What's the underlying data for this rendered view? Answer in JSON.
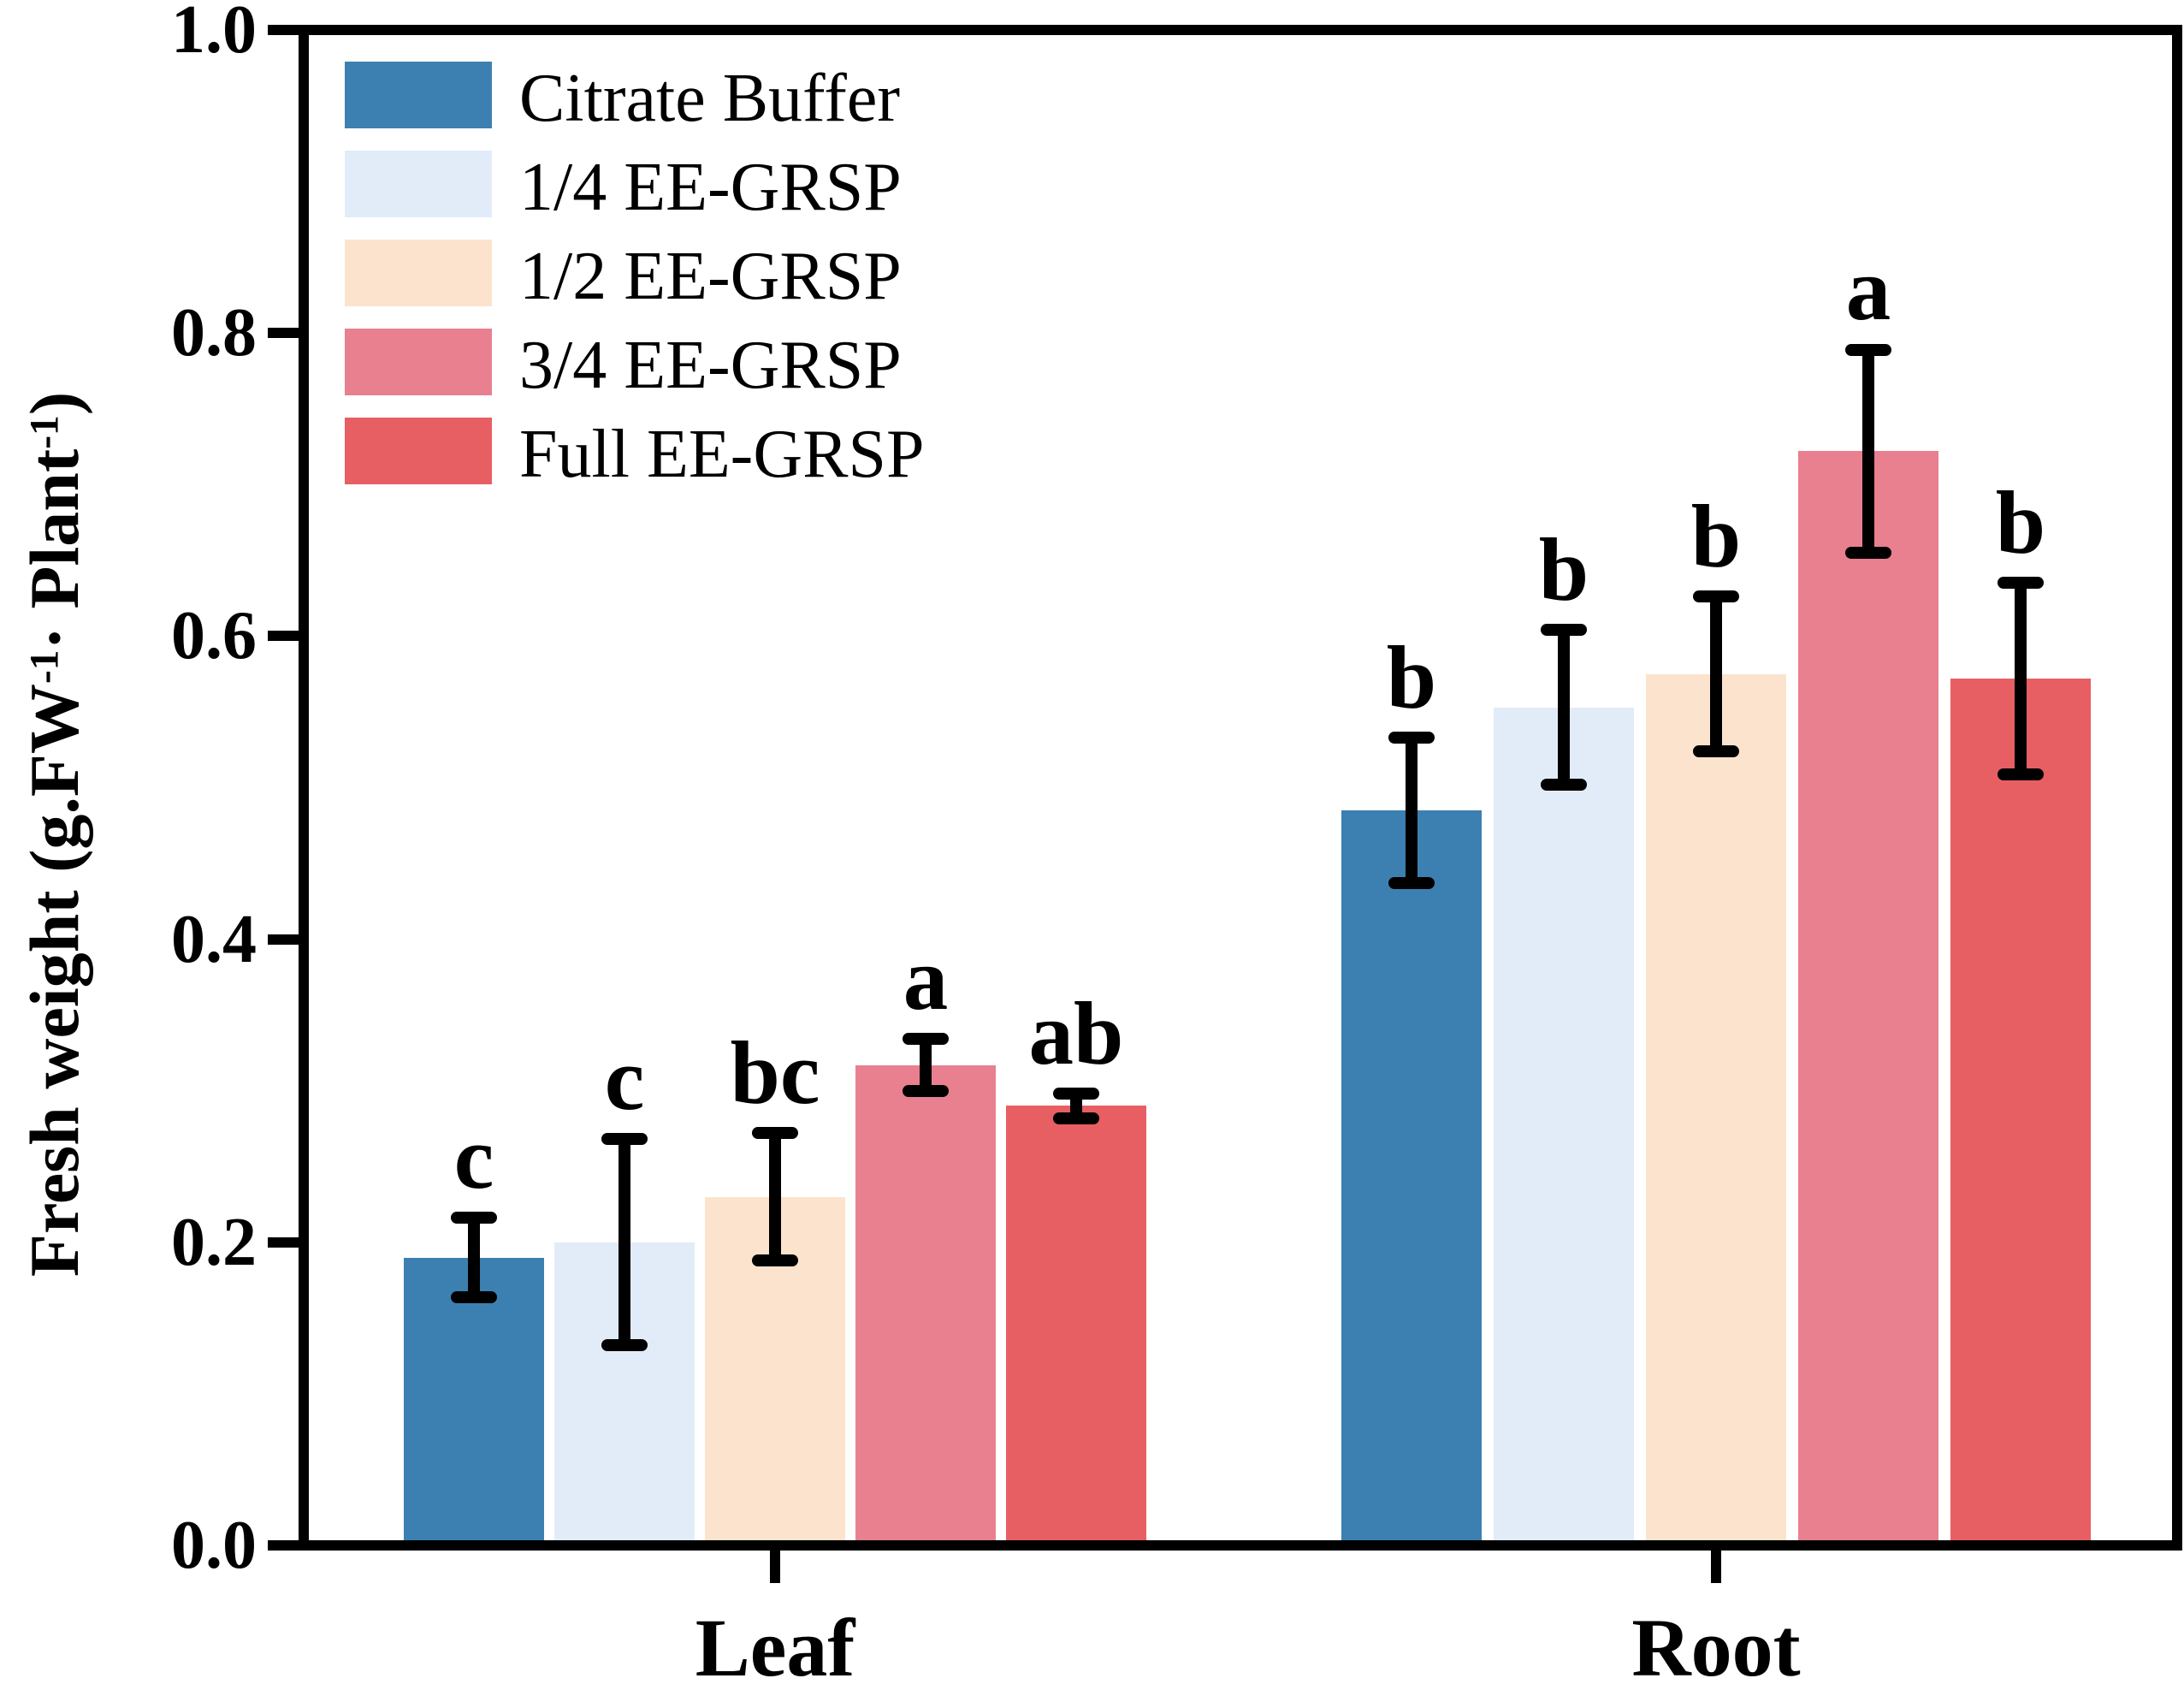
{
  "chart_data": {
    "type": "bar",
    "title": "",
    "xlabel": "",
    "ylabel": "Fresh weight (g.FW⁻¹· Plant⁻¹)",
    "ylabel_parts": [
      "Fresh weight (g.FW",
      "-1",
      "· Plant",
      "-1",
      ")"
    ],
    "categories": [
      "Leaf",
      "Root"
    ],
    "series": [
      {
        "name": "Citrate Buffer",
        "color": "#3c80b1",
        "values": [
          0.19,
          0.485
        ],
        "errors": [
          0.026,
          0.048
        ],
        "sig": [
          "c",
          "b"
        ]
      },
      {
        "name": "1/4 EE-GRSP",
        "color": "#e2ecf9",
        "values": [
          0.2,
          0.553
        ],
        "errors": [
          0.068,
          0.051
        ],
        "sig": [
          "c",
          "b"
        ]
      },
      {
        "name": "1/2 EE-GRSP",
        "color": "#fce3cd",
        "values": [
          0.23,
          0.575
        ],
        "errors": [
          0.042,
          0.051
        ],
        "sig": [
          "bc",
          "b"
        ]
      },
      {
        "name": "3/4 EE-GRSP",
        "color": "#e8808f",
        "values": [
          0.317,
          0.722
        ],
        "errors": [
          0.017,
          0.067
        ],
        "sig": [
          "a",
          "a"
        ]
      },
      {
        "name": "Full EE-GRSP",
        "color": "#e75f63",
        "values": [
          0.29,
          0.572
        ],
        "errors": [
          0.008,
          0.063
        ],
        "sig": [
          "ab",
          "b"
        ]
      }
    ],
    "ylim": [
      0.0,
      1.0
    ],
    "yticks": [
      0.0,
      0.2,
      0.4,
      0.6,
      0.8,
      1.0
    ],
    "ytick_labels": [
      "0.0",
      "0.2",
      "0.4",
      "0.6",
      "0.8",
      "1.0"
    ],
    "grid": false,
    "error_bars": true,
    "legend_position": "upper-left",
    "axis_color": "#000000",
    "background_color": "#ffffff"
  }
}
